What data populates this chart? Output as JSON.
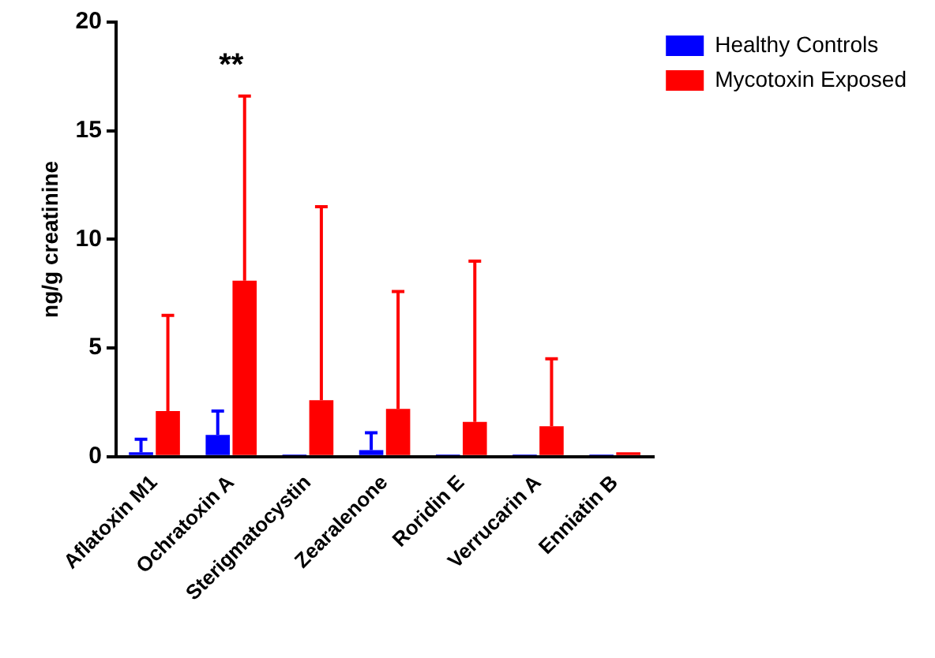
{
  "chart_data": {
    "type": "bar",
    "ylabel": "ng/g creatinine",
    "categories": [
      "Aflatoxin M1",
      "Ochratoxin A",
      "Sterigmatocystin",
      "Zearalenone",
      "Roridin E",
      "Verrucarin A",
      "Enniatin B"
    ],
    "series": [
      {
        "name": "Healthy Controls",
        "color": "#0000ff",
        "values": [
          0.2,
          1.0,
          0.1,
          0.3,
          0.1,
          0.1,
          0.1
        ],
        "errors": [
          [
            0.2,
            0.8
          ],
          [
            1.0,
            2.1
          ],
          null,
          [
            0.3,
            1.1
          ],
          null,
          null,
          null
        ]
      },
      {
        "name": "Mycotoxin Exposed",
        "color": "#ff0000",
        "values": [
          2.1,
          8.1,
          2.6,
          2.2,
          1.6,
          1.4,
          0.2
        ],
        "errors": [
          [
            2.1,
            6.5
          ],
          [
            8.1,
            16.6
          ],
          [
            2.6,
            11.5
          ],
          [
            2.2,
            7.6
          ],
          [
            1.6,
            9.0
          ],
          [
            1.4,
            4.5
          ],
          null
        ]
      }
    ],
    "ylim": [
      0,
      20
    ],
    "yticks": [
      0,
      5,
      10,
      15,
      20
    ],
    "annotations": [
      "**"
    ],
    "legend": "top right"
  }
}
